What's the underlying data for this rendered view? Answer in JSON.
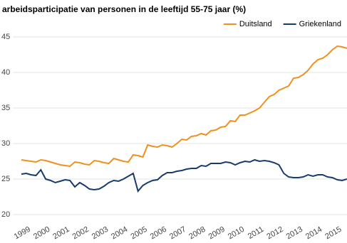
{
  "chart_data": {
    "type": "line",
    "title": "arbeidsparticipatie van personen in de leeftijd 55-75 jaar (%)",
    "categories": [
      "1999",
      null,
      null,
      null,
      "2000",
      null,
      null,
      null,
      "2001",
      null,
      null,
      null,
      "2002",
      null,
      null,
      null,
      "2003",
      null,
      null,
      null,
      "2004",
      null,
      null,
      null,
      "2005",
      null,
      null,
      null,
      "2006",
      null,
      null,
      null,
      "2007",
      null,
      null,
      null,
      "2008",
      null,
      null,
      null,
      "2009",
      null,
      null,
      null,
      "2010",
      null,
      null,
      null,
      "2011",
      null,
      null,
      null,
      "2012",
      null,
      null,
      null,
      "2013",
      null,
      null,
      null,
      "2014",
      null,
      null,
      null,
      "2015",
      null,
      null,
      null
    ],
    "series": [
      {
        "name": "Duitsland",
        "color": "#f0901e",
        "values": [
          27.7,
          27.6,
          27.5,
          27.4,
          27.7,
          27.6,
          27.4,
          27.2,
          27.0,
          26.9,
          26.8,
          27.4,
          27.3,
          27.1,
          27.0,
          27.6,
          27.5,
          27.3,
          27.2,
          27.9,
          27.7,
          27.5,
          27.4,
          28.4,
          28.3,
          28.1,
          29.8,
          29.6,
          29.5,
          29.8,
          29.7,
          29.5,
          30.0,
          30.6,
          30.5,
          31.0,
          31.1,
          31.4,
          31.2,
          31.8,
          31.9,
          32.3,
          32.4,
          33.2,
          33.1,
          34.0,
          34.0,
          34.3,
          34.6,
          35.0,
          35.8,
          36.6,
          36.9,
          37.5,
          37.8,
          38.1,
          39.2,
          39.3,
          39.7,
          40.3,
          41.2,
          41.8,
          42.0,
          42.5,
          43.2,
          43.7,
          43.6,
          43.4
        ]
      },
      {
        "name": "Griekenland",
        "color": "#173c6b",
        "values": [
          25.7,
          25.8,
          25.6,
          25.5,
          26.3,
          25.0,
          24.8,
          24.5,
          24.7,
          24.9,
          24.8,
          23.9,
          24.5,
          24.1,
          23.6,
          23.5,
          23.6,
          24.0,
          24.5,
          24.8,
          24.7,
          25.0,
          25.4,
          25.8,
          23.3,
          24.1,
          24.5,
          24.8,
          24.9,
          25.5,
          25.9,
          25.9,
          26.1,
          26.2,
          26.4,
          26.5,
          26.5,
          26.9,
          26.8,
          27.2,
          27.2,
          27.2,
          27.4,
          27.3,
          27.0,
          27.3,
          27.5,
          27.4,
          27.7,
          27.5,
          27.6,
          27.5,
          27.3,
          27.0,
          25.8,
          25.3,
          25.2,
          25.2,
          25.3,
          25.6,
          25.4,
          25.6,
          25.6,
          25.3,
          25.2,
          24.9,
          24.8,
          25.0
        ]
      }
    ],
    "ylim": [
      20,
      46
    ],
    "yticks": [
      20,
      25,
      30,
      35,
      40,
      45
    ],
    "grid": true,
    "legend": "top-right"
  }
}
